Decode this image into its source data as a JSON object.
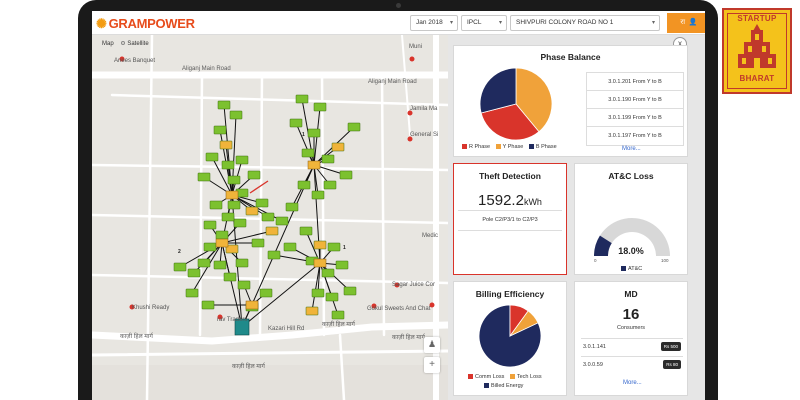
{
  "header": {
    "logo_prefix": "GRAM",
    "logo_suffix": "POWER",
    "month_select": "Jan 2018",
    "utility_select": "IPCL",
    "feeder_select": "SHIVPURI COLONY ROAD NO 1",
    "user_label": "रा"
  },
  "map": {
    "map_type_label": "Map",
    "satellite_label": "Satellite",
    "labels": {
      "anees": "Anees Banquet",
      "aliganj1": "Aliganj Main Road",
      "aliganj2": "Aliganj Main Road",
      "muni": "Muni",
      "jamila": "Jamila Ma",
      "general": "General Si",
      "medic": "Medic",
      "sagar": "Sagar Juice Cor",
      "gokul": "Gokul Sweets And Chat",
      "khushi": "Khushi Ready",
      "rav": "rav Traders",
      "kazi1": "काज़ी हिल मार्ग",
      "kazi2": "काज़ी हिल मार्ग",
      "kazi3": "काज़ी हिल मार्ग",
      "kazi4": "काज़ी हिल मार्ग",
      "kazari": "Kazari Hill Rd"
    },
    "marker_counts": {
      "a": "1",
      "b": "1",
      "c": "2"
    },
    "zoom_in": "+"
  },
  "panel": {
    "close_label": "x",
    "phase_balance": {
      "title": "Phase Balance",
      "legend": [
        "R Phase",
        "Y Phase",
        "B Phase"
      ],
      "colors": {
        "R Phase": "#d9342b",
        "Y Phase": "#f0a23a",
        "B Phase": "#1f2a5e"
      },
      "slices": [
        {
          "name": "R Phase",
          "value": 32
        },
        {
          "name": "Y Phase",
          "value": 39
        },
        {
          "name": "B Phase",
          "value": 29
        }
      ],
      "items": [
        "3.0.1.201 From Y to B",
        "3.0.1.190 From Y to B",
        "3.0.1.199 From Y to B",
        "3.0.1.197 From Y to B"
      ],
      "more": "More..."
    },
    "theft": {
      "title": "Theft Detection",
      "value": "1592.2",
      "unit": "kWh",
      "pole": "Pole C2/P3/1 to C2/P3"
    },
    "atc": {
      "title": "AT&C Loss",
      "percent": "18.0%",
      "value": 18.0,
      "min": "0",
      "max": "100",
      "legend": "AT&C"
    },
    "billing": {
      "title": "Billing Efficiency",
      "legend": [
        "Comm Loss",
        "Tech Loss",
        "Billed Energy"
      ],
      "colors": {
        "Comm Loss": "#d9342b",
        "Tech Loss": "#f0a23a",
        "Billed Energy": "#1f2a5e"
      },
      "slices": [
        {
          "name": "Comm Loss",
          "value": 10
        },
        {
          "name": "Tech Loss",
          "value": 8
        },
        {
          "name": "Billed Energy",
          "value": 82
        }
      ]
    },
    "md": {
      "title": "MD",
      "count": "16",
      "count_label": "Consumers",
      "rows": [
        {
          "id": "3.0.1.141",
          "badge": "Rs 500"
        },
        {
          "id": "3.0.0.59",
          "badge": "Rs 80"
        }
      ],
      "more": "More..."
    }
  },
  "brand_badge": {
    "line1": "STARTUP",
    "line2": "BHARAT"
  }
}
